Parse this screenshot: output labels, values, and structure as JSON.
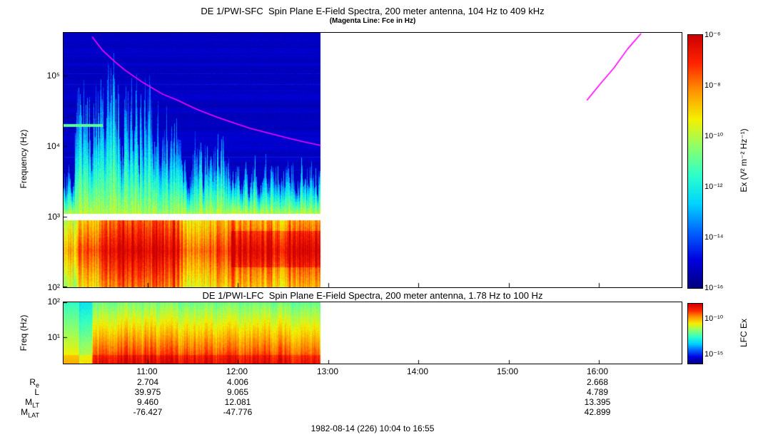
{
  "page": {
    "caption": "1982-08-14 (226) 10:04 to 16:55"
  },
  "colors": {
    "fce_line": "#ff00ff",
    "panel_border": "#000000",
    "background": "#ffffff",
    "colormap": [
      "#00007f",
      "#0000e0",
      "#0064ff",
      "#00d4ff",
      "#2cffca",
      "#8cff6c",
      "#f4f000",
      "#ff9400",
      "#ff2200",
      "#cc0000"
    ]
  },
  "xaxis": {
    "ticks": [
      "11:00",
      "12:00",
      "13:00",
      "14:00",
      "15:00",
      "16:00"
    ]
  },
  "chart_data": [
    {
      "type": "heatmap",
      "instrument": "DE 1/PWI-SFC",
      "title": "DE 1/PWI-SFC  Spin Plane E-Field Spectra, 200 meter antenna, 104 Hz to 409 kHz",
      "subtitle": "(Magenta Line: Fce in Hz)",
      "ylabel": "Frequency (Hz)",
      "ylim_hz": [
        100,
        409000
      ],
      "yticks": [
        "10⁵",
        "10⁴",
        "10³",
        "10²"
      ],
      "ytick_hz": [
        100000,
        10000,
        1000,
        100
      ],
      "xlabel": "",
      "time_start": "10:04",
      "time_end": "16:55",
      "data_time_end": "12:55",
      "white_gap_hz": [
        900,
        1100
      ],
      "grid": false,
      "colorbar_label": "Ex (V² m⁻² Hz⁻¹)",
      "colorbar_ticks": [
        "10⁻⁶",
        "10⁻⁸",
        "10⁻¹⁰",
        "10⁻¹²",
        "10⁻¹⁴",
        "10⁻¹⁶"
      ],
      "colorbar_range_exp": [
        -16,
        -6
      ],
      "features": [
        "broadband bursty emissions 10:10-11:30 from 100 Hz up to ~300 kHz",
        "intense 100-900 Hz band (yellow/orange/red) for entire data interval 10:04-12:55",
        "white instrument gap band near 1 kHz",
        "weak blue background with horizontal banding above 1 kHz after 12:00",
        "no data (white) after ~12:55 until 16:55"
      ],
      "fce_hz": [
        [
          [
            "10:23",
            360000
          ],
          [
            "10:30",
            230000
          ],
          [
            "10:38",
            160000
          ],
          [
            "10:45",
            120000
          ],
          [
            "10:57",
            80000
          ],
          [
            "11:10",
            55000
          ],
          [
            "11:20",
            45000
          ],
          [
            "11:32",
            34000
          ],
          [
            "11:44",
            27000
          ],
          [
            "11:56",
            22000
          ],
          [
            "12:08",
            18000
          ],
          [
            "12:20",
            15500
          ],
          [
            "12:32",
            13300
          ],
          [
            "12:44",
            11600
          ],
          [
            "12:55",
            10300
          ]
        ],
        [
          [
            "15:52",
            45000
          ],
          [
            "16:00",
            73000
          ],
          [
            "16:10",
            130000
          ],
          [
            "16:19",
            240000
          ],
          [
            "16:28",
            400000
          ]
        ]
      ]
    },
    {
      "type": "heatmap",
      "instrument": "DE 1/PWI-LFC",
      "title": "DE 1/PWI-LFC  Spin Plane E-Field Spectra, 200 meter antenna, 1.78 Hz to 100 Hz",
      "ylabel": "Freq (Hz)",
      "ylim_hz": [
        1.78,
        100
      ],
      "yticks": [
        "10²",
        "10¹"
      ],
      "ytick_hz": [
        100,
        10
      ],
      "time_start": "10:04",
      "time_end": "16:55",
      "data_time_end": "12:55",
      "grid": false,
      "colorbar_label": "LFC Ex",
      "colorbar_ticks": [
        "10⁻¹⁰",
        "10⁻¹⁵"
      ],
      "features": [
        "intense red/orange emission at lowest frequencies for whole data interval",
        "yellow/green at upper frequencies, green patch at far left edge",
        "no data (white) after ~12:55"
      ]
    }
  ],
  "ephemeris": {
    "column_times": [
      "11:00",
      "12:00",
      "16:00"
    ],
    "rows": [
      {
        "name": "R_e",
        "main": "R",
        "sub": "e",
        "values": [
          "2.704",
          "4.006",
          "2.668"
        ]
      },
      {
        "name": "L",
        "main": "L",
        "sub": "",
        "values": [
          "39.975",
          "9.065",
          "4.789"
        ]
      },
      {
        "name": "M_LT",
        "main": "M",
        "sub": "LT",
        "values": [
          "9.460",
          "12.081",
          "13.395"
        ]
      },
      {
        "name": "M_LAT",
        "main": "M",
        "sub": "LAT",
        "values": [
          "-76.427",
          "-47.776",
          "42.899"
        ]
      }
    ]
  }
}
